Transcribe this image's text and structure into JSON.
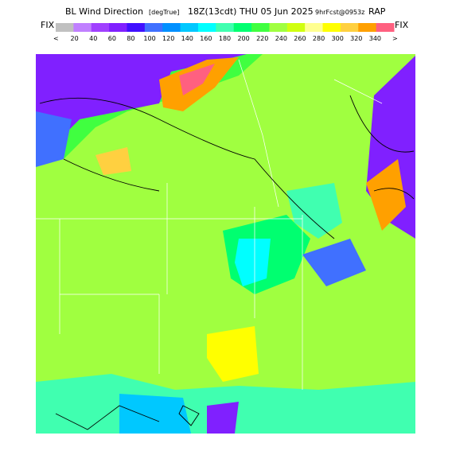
{
  "header": {
    "title": "BL Wind Direction",
    "units": "[degTrue]",
    "time": "18Z(13cdt) THU 05 Jun 2025",
    "forecast": "9hrFcst@0953z",
    "model": "RAP"
  },
  "colorbar": {
    "left_label": "FIX",
    "right_label": "FIX",
    "low_label": "<",
    "high_label": ">",
    "colors": [
      "#c0c0c0",
      "#c080ff",
      "#a040ff",
      "#8020ff",
      "#4010ff",
      "#4070ff",
      "#0090ff",
      "#00c8ff",
      "#00ffff",
      "#40ffb0",
      "#00ff70",
      "#40ff40",
      "#a0ff40",
      "#d0ff10",
      "#ffff90",
      "#ffff00",
      "#ffd040",
      "#ffa000",
      "#ff6080"
    ],
    "labels": [
      "20",
      "40",
      "60",
      "80",
      "100",
      "120",
      "140",
      "160",
      "180",
      "200",
      "220",
      "240",
      "260",
      "280",
      "300",
      "320",
      "340"
    ]
  }
}
